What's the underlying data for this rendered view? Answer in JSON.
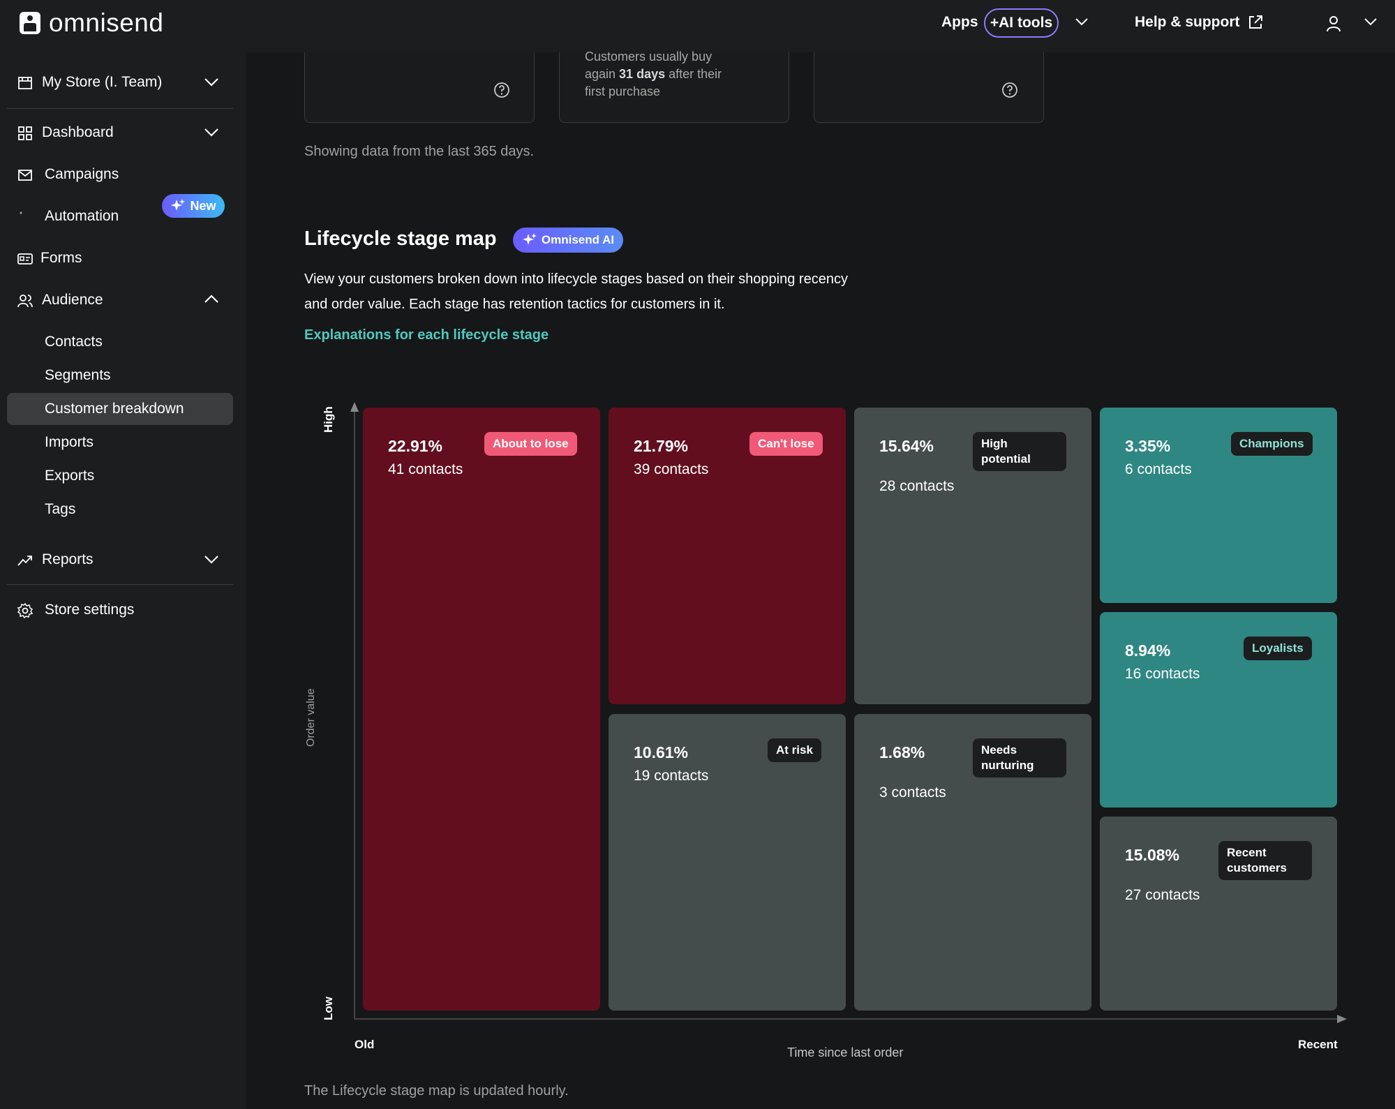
{
  "topbar": {
    "logo_text": "omnisend",
    "apps": "Apps",
    "ai_tools": "+AI tools",
    "help": "Help & support"
  },
  "sidebar": {
    "store": "My Store (I. Team)",
    "dashboard": "Dashboard",
    "campaigns": "Campaigns",
    "automation": "Automation",
    "forms": "Forms",
    "new_badge": "New",
    "audience": "Audience",
    "audience_items": [
      "Contacts",
      "Segments",
      "Customer breakdown",
      "Imports",
      "Exports",
      "Tags"
    ],
    "reports": "Reports",
    "store_settings": "Store settings"
  },
  "cards": {
    "card2_line1": "Customers usually buy",
    "card2_line2_pre": "again ",
    "card2_days": "31 days",
    "card2_line2_post": " after their",
    "card2_line3": "first purchase"
  },
  "main": {
    "showing": "Showing data from the last 365 days.",
    "title": "Lifecycle stage map",
    "ai_badge": "Omnisend AI",
    "description": "View your customers broken down into lifecycle stages based on their shopping recency and order value. Each stage has retention tactics for customers in it.",
    "link": "Explanations for each lifecycle stage",
    "footnote": "The Lifecycle stage map is updated hourly."
  },
  "chart_data": {
    "type": "table",
    "y_axis": {
      "title": "Order value",
      "low": "Low",
      "high": "High"
    },
    "x_axis": {
      "title": "Time since last order",
      "left": "Old",
      "right": "Recent"
    },
    "stages": [
      {
        "name": "About to lose",
        "percent": "22.91%",
        "contacts": "41 contacts",
        "color": "#620e1f"
      },
      {
        "name": "Can't lose",
        "percent": "21.79%",
        "contacts": "39 contacts",
        "color": "#620e1f"
      },
      {
        "name": "At risk",
        "percent": "10.61%",
        "contacts": "19 contacts",
        "color": "#454c4c"
      },
      {
        "name": "High potential",
        "percent": "15.64%",
        "contacts": "28 contacts",
        "color": "#454c4c"
      },
      {
        "name": "Needs nurturing",
        "percent": "1.68%",
        "contacts": "3 contacts",
        "color": "#454c4c"
      },
      {
        "name": "Champions",
        "percent": "3.35%",
        "contacts": "6 contacts",
        "color": "#2e8782"
      },
      {
        "name": "Loyalists",
        "percent": "8.94%",
        "contacts": "16 contacts",
        "color": "#2e8782"
      },
      {
        "name": "Recent customers",
        "percent": "15.08%",
        "contacts": "27 contacts",
        "color": "#454c4c"
      }
    ]
  }
}
